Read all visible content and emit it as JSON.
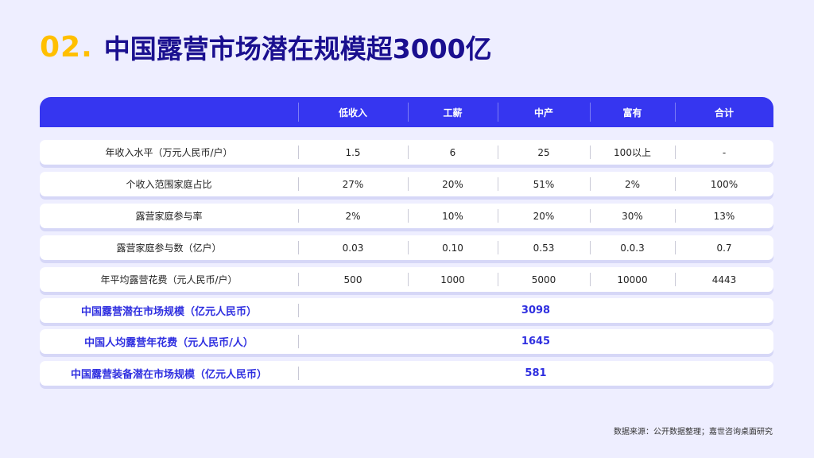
{
  "title": {
    "number": "02.",
    "text": "中国露营市场潜在规模超3000亿"
  },
  "table": {
    "header": [
      "",
      "低收入",
      "工薪",
      "中产",
      "富有",
      "合计"
    ],
    "rows": [
      [
        "年收入水平（万元人民币/户）",
        "1.5",
        "6",
        "25",
        "100以上",
        "-"
      ],
      [
        "个收入范围家庭占比",
        "27%",
        "20%",
        "51%",
        "2%",
        "100%"
      ],
      [
        "露营家庭参与率",
        "2%",
        "10%",
        "20%",
        "30%",
        "13%"
      ],
      [
        "露营家庭参与数（亿户）",
        "0.03",
        "0.10",
        "0.53",
        "0.0.3",
        "0.7"
      ],
      [
        "年平均露营花费（元人民币/户）",
        "500",
        "1000",
        "5000",
        "10000",
        "4443"
      ]
    ],
    "summary_rows": [
      {
        "label": "中国露营潜在市场规模（亿元人民币）",
        "value": "3098"
      },
      {
        "label": "中国人均露营年花费（元人民币/人）",
        "value": "1645"
      },
      {
        "label": "中国露营装备潜在市场规模（亿元人民币）",
        "value": "581"
      }
    ]
  },
  "source": "数据来源：公开数据整理；嘉世咨询桌面研究",
  "colors": {
    "accent_yellow": "#ffbf00",
    "title_navy": "#1a0f8f",
    "header_blue": "#3636f0",
    "summary_blue": "#2f2fe0"
  }
}
